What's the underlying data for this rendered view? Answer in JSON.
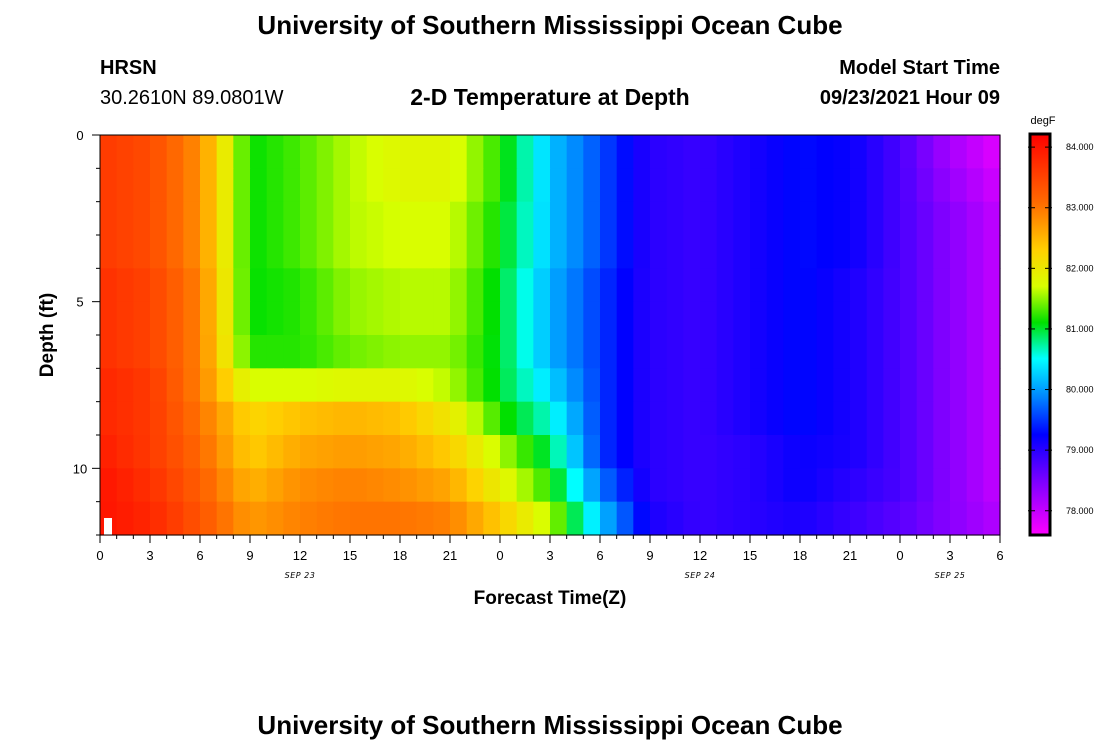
{
  "page": {
    "title_top": "University of Southern Mississippi Ocean Cube",
    "title_bottom": "University of Southern Mississippi Ocean Cube",
    "station": "HRSN",
    "coords": "30.2610N  89.0801W",
    "plot_title": "2-D Temperature at Depth",
    "model_label": "Model Start Time",
    "model_time": "09/23/2021 Hour 09"
  },
  "chart_data": {
    "type": "heatmap",
    "title": "2-D Temperature at Depth",
    "xlabel": "Forecast Time(Z)",
    "ylabel": "Depth (ft)",
    "x_range_hours": [
      0,
      54
    ],
    "x_tick_labels": [
      "0",
      "3",
      "6",
      "9",
      "12",
      "15",
      "18",
      "21",
      "0",
      "3",
      "6",
      "9",
      "12",
      "15",
      "18",
      "21",
      "0",
      "3",
      "6"
    ],
    "date_labels": [
      {
        "hour": 12,
        "text": "SEP 23"
      },
      {
        "hour": 36,
        "text": "SEP 24"
      },
      {
        "hour": 51,
        "text": "SEP 25"
      }
    ],
    "y_range_ft": [
      0,
      12
    ],
    "y_tick_labels": [
      "0",
      "5",
      "10"
    ],
    "colorbar": {
      "units": "degF",
      "range": [
        77.6,
        84.2
      ],
      "ticks": [
        "84.000",
        "83.000",
        "82.000",
        "81.000",
        "80.000",
        "79.000",
        "78.000"
      ]
    },
    "depths_ft": [
      0.5,
      1.5,
      2.5,
      3.5,
      4.5,
      5.5,
      6.5,
      7.5,
      8.5,
      9.5,
      10.5,
      11.5
    ],
    "hours": [
      0,
      3,
      6,
      9,
      12,
      15,
      18,
      21,
      24,
      27,
      30,
      33,
      36,
      39,
      42,
      45,
      48,
      51,
      54
    ],
    "temperatures_degF": [
      [
        83.6,
        83.4,
        82.8,
        81.1,
        81.3,
        81.6,
        81.8,
        81.8,
        81.2,
        80.2,
        79.6,
        79.0,
        78.9,
        79.1,
        79.3,
        79.2,
        78.8,
        78.2,
        77.8
      ],
      [
        83.6,
        83.4,
        82.8,
        81.1,
        81.3,
        81.6,
        81.8,
        81.8,
        81.2,
        80.2,
        79.6,
        79.0,
        78.9,
        79.1,
        79.3,
        79.2,
        78.8,
        78.3,
        77.9
      ],
      [
        83.6,
        83.4,
        82.8,
        81.1,
        81.3,
        81.6,
        81.7,
        81.7,
        81.1,
        80.2,
        79.6,
        79.0,
        78.9,
        79.1,
        79.3,
        79.2,
        78.8,
        78.4,
        78.0
      ],
      [
        83.6,
        83.4,
        82.8,
        81.1,
        81.3,
        81.6,
        81.7,
        81.7,
        81.1,
        80.2,
        79.6,
        79.0,
        78.9,
        79.1,
        79.3,
        79.2,
        78.8,
        78.4,
        78.0
      ],
      [
        83.7,
        83.5,
        82.9,
        81.1,
        81.2,
        81.5,
        81.6,
        81.6,
        81.0,
        80.1,
        79.5,
        79.0,
        78.9,
        79.1,
        79.3,
        79.1,
        78.8,
        78.4,
        78.0
      ],
      [
        83.7,
        83.5,
        82.9,
        81.1,
        81.2,
        81.5,
        81.6,
        81.6,
        81.0,
        80.1,
        79.5,
        79.0,
        78.9,
        79.1,
        79.3,
        79.1,
        78.8,
        78.4,
        78.0
      ],
      [
        83.7,
        83.5,
        82.9,
        81.2,
        81.2,
        81.4,
        81.5,
        81.5,
        81.0,
        80.1,
        79.5,
        79.0,
        78.9,
        79.1,
        79.3,
        79.1,
        78.8,
        78.4,
        78.0
      ],
      [
        83.8,
        83.6,
        82.9,
        81.7,
        81.7,
        81.8,
        81.8,
        81.6,
        81.0,
        80.3,
        79.5,
        79.0,
        78.9,
        79.1,
        79.3,
        79.1,
        78.8,
        78.4,
        78.0
      ],
      [
        83.8,
        83.6,
        83.0,
        82.2,
        82.4,
        82.5,
        82.4,
        82.0,
        81.2,
        80.6,
        79.5,
        79.0,
        78.9,
        79.1,
        79.3,
        79.1,
        78.8,
        78.4,
        78.0
      ],
      [
        83.9,
        83.6,
        83.1,
        82.3,
        82.6,
        82.7,
        82.6,
        82.3,
        81.6,
        80.9,
        79.5,
        79.0,
        78.9,
        79.0,
        79.2,
        79.1,
        78.8,
        78.4,
        78.0
      ],
      [
        84.0,
        83.7,
        83.2,
        82.5,
        82.8,
        82.9,
        82.8,
        82.6,
        81.9,
        81.2,
        79.8,
        79.0,
        78.9,
        79.0,
        79.2,
        79.0,
        78.8,
        78.4,
        78.0
      ],
      [
        84.0,
        83.8,
        83.3,
        82.7,
        82.9,
        83.0,
        83.0,
        82.9,
        82.3,
        81.6,
        80.2,
        79.1,
        78.9,
        79.0,
        79.1,
        78.9,
        78.7,
        78.4,
        78.1
      ]
    ]
  }
}
